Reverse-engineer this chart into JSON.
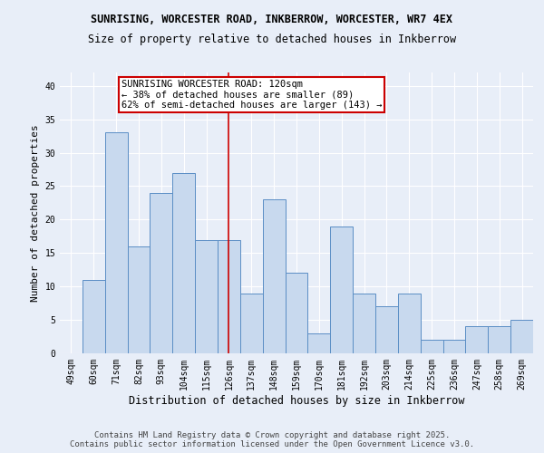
{
  "title_line1": "SUNRISING, WORCESTER ROAD, INKBERROW, WORCESTER, WR7 4EX",
  "title_line2": "Size of property relative to detached houses in Inkberrow",
  "xlabel": "Distribution of detached houses by size in Inkberrow",
  "ylabel": "Number of detached properties",
  "categories": [
    "49sqm",
    "60sqm",
    "71sqm",
    "82sqm",
    "93sqm",
    "104sqm",
    "115sqm",
    "126sqm",
    "137sqm",
    "148sqm",
    "159sqm",
    "170sqm",
    "181sqm",
    "192sqm",
    "203sqm",
    "214sqm",
    "225sqm",
    "236sqm",
    "247sqm",
    "258sqm",
    "269sqm"
  ],
  "values": [
    0,
    11,
    33,
    16,
    24,
    27,
    17,
    17,
    9,
    23,
    12,
    3,
    19,
    9,
    7,
    9,
    2,
    2,
    4,
    4,
    5
  ],
  "bar_color": "#c8d9ee",
  "bar_edge_color": "#5b8ec5",
  "property_line_x": 7,
  "property_label": "SUNRISING WORCESTER ROAD: 120sqm",
  "annotation_line2": "← 38% of detached houses are smaller (89)",
  "annotation_line3": "62% of semi-detached houses are larger (143) →",
  "annotation_box_color": "#ffffff",
  "annotation_box_edge": "#cc0000",
  "vline_color": "#cc0000",
  "ylim": [
    0,
    42
  ],
  "yticks": [
    0,
    5,
    10,
    15,
    20,
    25,
    30,
    35,
    40
  ],
  "bg_color": "#e8eef8",
  "fig_bg_color": "#e8eef8",
  "grid_color": "#ffffff",
  "footer_line1": "Contains HM Land Registry data © Crown copyright and database right 2025.",
  "footer_line2": "Contains public sector information licensed under the Open Government Licence v3.0.",
  "title1_fontsize": 8.5,
  "title2_fontsize": 8.5,
  "tick_fontsize": 7,
  "xlabel_fontsize": 8.5,
  "ylabel_fontsize": 8,
  "footer_fontsize": 6.5,
  "annot_fontsize": 7.5
}
